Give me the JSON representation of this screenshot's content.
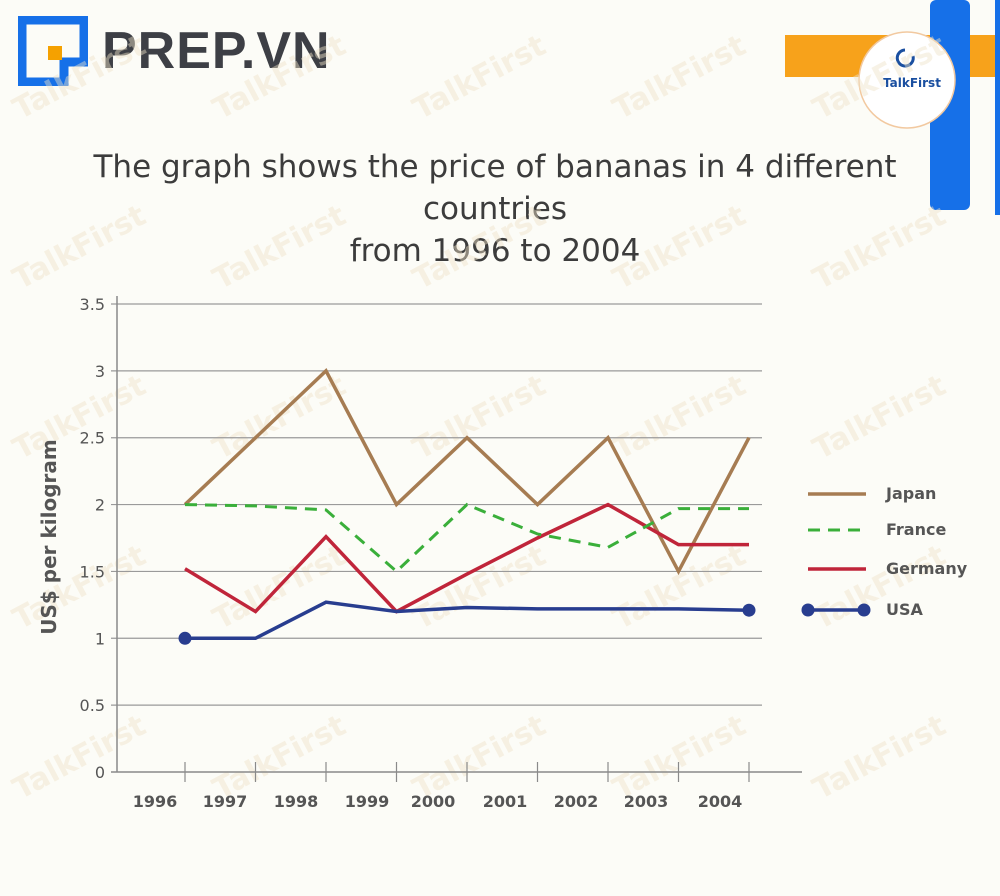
{
  "brand": {
    "name": "PREP.VN",
    "corner_logo": "TalkFirst"
  },
  "watermark": "TalkFirst",
  "chart_data": {
    "type": "line",
    "title_lines": [
      "The graph shows the price of bananas in 4 different countries",
      "from 1996 to 2004"
    ],
    "ylabel": "US$ per kilogram",
    "xlabel": "",
    "ylim": [
      0,
      3.5
    ],
    "yticks": [
      "0",
      "0.5",
      "1",
      "1.5",
      "2",
      "2.5",
      "3",
      "3.5"
    ],
    "categories": [
      "1996",
      "1997",
      "1998",
      "1999",
      "2000",
      "2001",
      "2002",
      "2003",
      "2004"
    ],
    "grid": "horizontal",
    "legend": "right",
    "series": [
      {
        "name": "Japan",
        "color": "#a67c52",
        "style": "solid",
        "x": [
          1996,
          1997,
          1998,
          1999,
          2000,
          2001,
          2002,
          2003,
          2004
        ],
        "values": [
          2.0,
          2.5,
          3.0,
          2.0,
          2.5,
          2.0,
          2.5,
          1.5,
          2.5
        ]
      },
      {
        "name": "France",
        "color": "#3aaf3a",
        "style": "dashed",
        "x": [
          1996,
          1997,
          1998,
          1999,
          2000,
          2001,
          2002,
          2003,
          2004
        ],
        "values": [
          2.0,
          1.99,
          1.96,
          1.5,
          2.0,
          1.78,
          1.68,
          1.97,
          1.97
        ]
      },
      {
        "name": "Germany",
        "color": "#c0253a",
        "style": "solid",
        "x": [
          1996,
          1997,
          1998,
          1999,
          2000,
          2001,
          2002,
          2003,
          2004
        ],
        "values": [
          1.52,
          1.2,
          1.76,
          1.2,
          1.48,
          1.75,
          2.0,
          1.7,
          1.7
        ]
      },
      {
        "name": "USA",
        "color": "#283d8f",
        "style": "solid",
        "markers": "endpoints",
        "x": [
          1996,
          1997,
          1998,
          1999,
          2000,
          2001,
          2002,
          2003,
          2004
        ],
        "values": [
          1.0,
          1.0,
          1.27,
          1.2,
          1.23,
          1.22,
          1.22,
          1.22,
          1.21
        ]
      }
    ]
  }
}
